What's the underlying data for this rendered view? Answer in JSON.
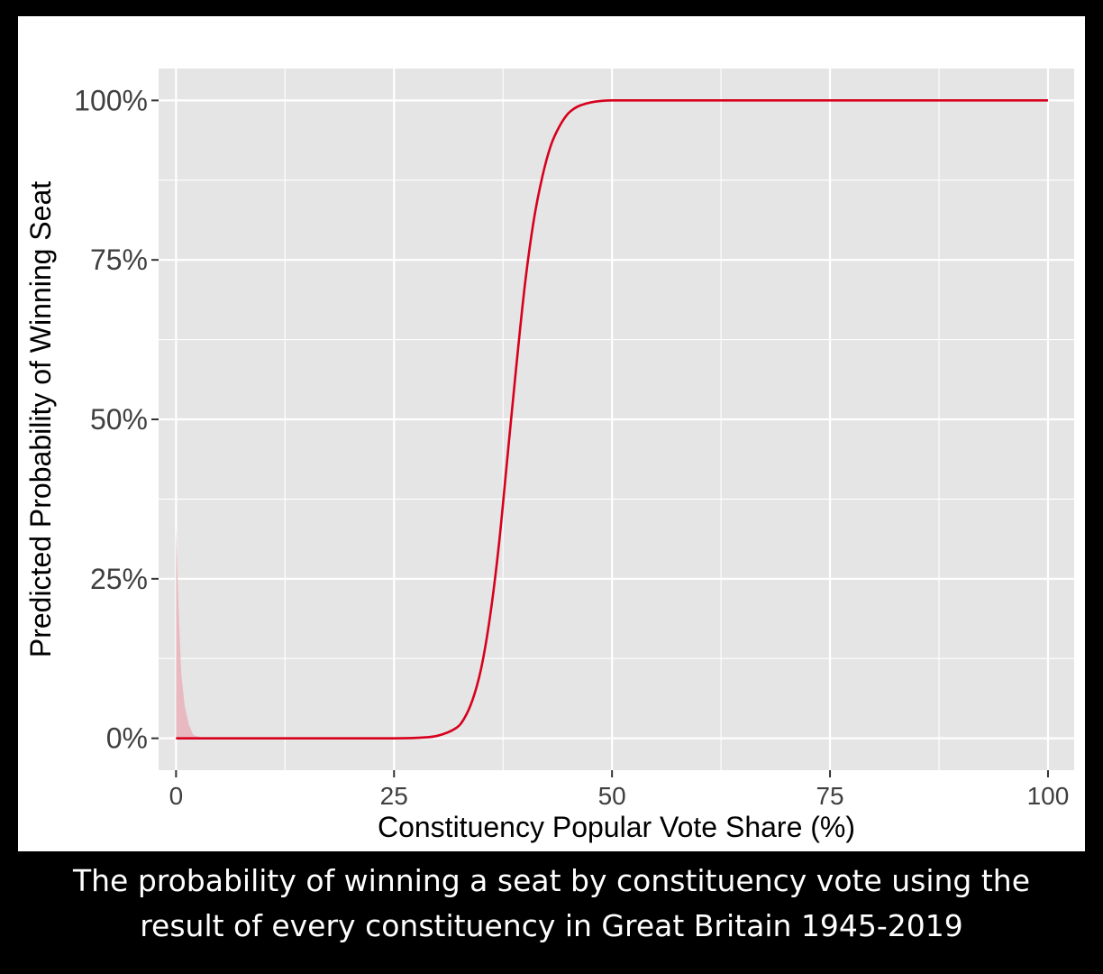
{
  "caption": {
    "line1": "The probability of winning a seat by constituency vote using the",
    "line2": "result of every constituency in Great Britain 1945-2019"
  },
  "colors": {
    "panel": "#e5e5e5",
    "grid": "#ffffff",
    "line": "#d7001d",
    "ribbon": "#e8aeb6",
    "text": "#404040",
    "background": "#000000"
  },
  "chart_data": {
    "type": "line",
    "title": "",
    "xlabel": "Constituency Popular Vote Share (%)",
    "ylabel": "Predicted Probability of Winning Seat",
    "xlim": [
      -2,
      103
    ],
    "ylim": [
      -0.05,
      1.05
    ],
    "x_ticks": [
      0,
      25,
      50,
      75,
      100
    ],
    "x_tick_labels": [
      "0",
      "25",
      "50",
      "75",
      "100"
    ],
    "y_ticks": [
      0,
      0.25,
      0.5,
      0.75,
      1
    ],
    "y_tick_labels": [
      "0%",
      "25%",
      "50%",
      "75%",
      "100%"
    ],
    "grid": true,
    "legend": "none",
    "series": [
      {
        "x": [
          0,
          10,
          20,
          25,
          28,
          30,
          32,
          33,
          34,
          35,
          36,
          37,
          38,
          39,
          40,
          41,
          42,
          43,
          44,
          45,
          46,
          47,
          48,
          50,
          55,
          60,
          75,
          100
        ],
        "y": [
          0,
          0,
          0,
          0,
          0.001,
          0.004,
          0.015,
          0.03,
          0.06,
          0.11,
          0.19,
          0.3,
          0.44,
          0.58,
          0.71,
          0.81,
          0.88,
          0.93,
          0.96,
          0.98,
          0.99,
          0.995,
          0.998,
          1,
          1,
          1,
          1,
          1
        ]
      }
    ],
    "ribbon": {
      "x": [
        0,
        0.3,
        0.6,
        1,
        1.5,
        2,
        3,
        5,
        10
      ],
      "upper": [
        0.33,
        0.2,
        0.1,
        0.05,
        0.02,
        0.005,
        0.001,
        0,
        0
      ]
    }
  }
}
